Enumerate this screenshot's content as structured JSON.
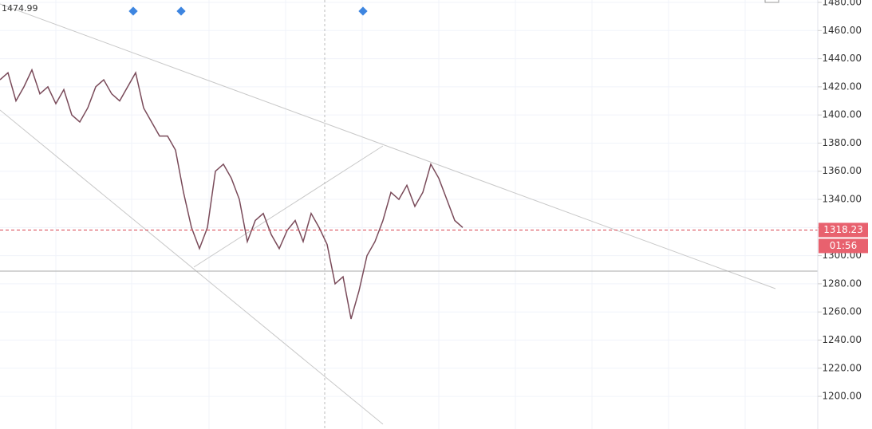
{
  "chart_data": {
    "type": "line",
    "color": "#7a4b5a",
    "values": [
      1425,
      1430,
      1410,
      1420,
      1432,
      1415,
      1420,
      1408,
      1418,
      1400,
      1395,
      1405,
      1420,
      1425,
      1415,
      1410,
      1420,
      1430,
      1405,
      1395,
      1385,
      1385,
      1375,
      1345,
      1320,
      1305,
      1320,
      1360,
      1365,
      1355,
      1340,
      1310,
      1325,
      1330,
      1315,
      1305,
      1318,
      1325,
      1310,
      1330,
      1320,
      1308,
      1280,
      1285,
      1255,
      1275,
      1300,
      1310,
      1325,
      1345,
      1340,
      1350,
      1335,
      1345,
      1365,
      1355,
      1340,
      1325,
      1320
    ],
    "ylim": [
      1176.8,
      1481.7
    ],
    "yticks": [
      {
        "value": 1200,
        "label": "1200.00"
      },
      {
        "value": 1220,
        "label": "1220.00"
      },
      {
        "value": 1240,
        "label": "1240.00"
      },
      {
        "value": 1260,
        "label": "1260.00"
      },
      {
        "value": 1280,
        "label": "1280.00"
      },
      {
        "value": 1300,
        "label": "1300.00"
      },
      {
        "value": 1320,
        "label": "1320.00"
      },
      {
        "value": 1340,
        "label": "1340.00"
      },
      {
        "value": 1360,
        "label": "1360.00"
      },
      {
        "value": 1380,
        "label": "1380.00"
      },
      {
        "value": 1400,
        "label": "1400.00"
      },
      {
        "value": 1420,
        "label": "1420.00"
      },
      {
        "value": 1440,
        "label": "1440.00"
      },
      {
        "value": 1460,
        "label": "1460.00"
      },
      {
        "value": 1480,
        "label": "1480.00"
      }
    ],
    "grid": true,
    "last_price": {
      "value": 1318.23,
      "label": "1318.23"
    },
    "countdown": "01:56",
    "high_label": "1474.99"
  }
}
